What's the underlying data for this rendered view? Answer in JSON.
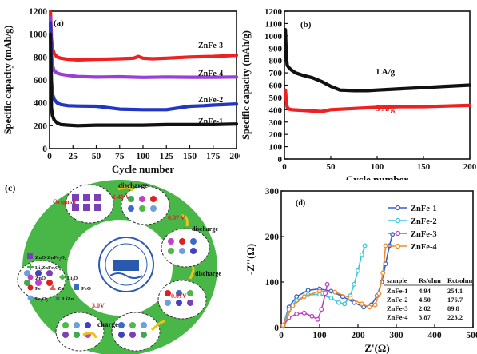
{
  "chart_data": [
    {
      "panel": "(a)",
      "type": "line",
      "xlabel": "Cycle number",
      "ylabel": "Specific capacity (mAh/g)",
      "xlim": [
        0,
        200
      ],
      "ylim": [
        0,
        1200
      ],
      "xticks": [
        0,
        25,
        50,
        75,
        100,
        125,
        150,
        175,
        200
      ],
      "yticks": [
        0,
        200,
        400,
        600,
        800,
        1000,
        1200
      ],
      "series": [
        {
          "name": "ZnFe-3",
          "color": "#ee2020",
          "x": [
            1,
            2,
            3,
            5,
            8,
            12,
            20,
            30,
            50,
            75,
            90,
            95,
            100,
            110,
            125,
            150,
            175,
            200
          ],
          "y": [
            1190,
            960,
            880,
            830,
            800,
            790,
            780,
            775,
            780,
            785,
            790,
            805,
            790,
            785,
            790,
            800,
            805,
            815
          ]
        },
        {
          "name": "ZnFe-4",
          "color": "#9a3fd6",
          "x": [
            1,
            2,
            3,
            5,
            8,
            12,
            20,
            30,
            50,
            75,
            100,
            125,
            150,
            175,
            200
          ],
          "y": [
            1150,
            830,
            730,
            680,
            660,
            650,
            640,
            630,
            625,
            628,
            622,
            626,
            624,
            624,
            626
          ]
        },
        {
          "name": "ZnFe-2",
          "color": "#2136c4",
          "x": [
            1,
            2,
            3,
            5,
            8,
            12,
            20,
            30,
            50,
            75,
            100,
            125,
            150,
            165,
            175,
            200
          ],
          "y": [
            1100,
            600,
            480,
            430,
            400,
            385,
            375,
            372,
            370,
            345,
            340,
            340,
            370,
            375,
            380,
            390
          ]
        },
        {
          "name": "ZnFe-1",
          "color": "#111111",
          "x": [
            1,
            2,
            3,
            5,
            8,
            12,
            20,
            30,
            50,
            75,
            100,
            125,
            150,
            175,
            200
          ],
          "y": [
            1000,
            360,
            290,
            250,
            225,
            210,
            205,
            200,
            205,
            205,
            205,
            210,
            210,
            210,
            215
          ]
        }
      ]
    },
    {
      "panel": "(b)",
      "type": "line",
      "xlabel": "Cycle number",
      "ylabel": "Specific capacity (mAh/g)",
      "xlim": [
        0,
        200
      ],
      "ylim": [
        0,
        1200
      ],
      "xticks": [
        0,
        50,
        100,
        150,
        200
      ],
      "yticks": [
        0,
        100,
        200,
        300,
        400,
        500,
        600,
        700,
        800,
        900,
        1000,
        1100,
        1200
      ],
      "series": [
        {
          "name": "1 A/g",
          "color": "#111111",
          "x": [
            1,
            2,
            3,
            5,
            8,
            12,
            20,
            30,
            40,
            50,
            60,
            75,
            90,
            100,
            125,
            150,
            175,
            200
          ],
          "y": [
            1050,
            840,
            760,
            740,
            720,
            700,
            680,
            660,
            630,
            590,
            560,
            555,
            555,
            560,
            570,
            580,
            590,
            600
          ]
        },
        {
          "name": "5 A/g",
          "color": "#ee2020",
          "x": [
            1,
            2,
            3,
            5,
            8,
            12,
            20,
            30,
            40,
            50,
            75,
            100,
            125,
            150,
            175,
            200
          ],
          "y": [
            560,
            470,
            420,
            405,
            400,
            398,
            395,
            390,
            385,
            400,
            410,
            420,
            425,
            425,
            430,
            435
          ]
        }
      ]
    },
    {
      "panel": "(d)",
      "type": "line",
      "xlabel": "Z'(Ω)",
      "ylabel": "-Z''(Ω)",
      "xlim": [
        0,
        500
      ],
      "ylim": [
        0,
        300
      ],
      "xticks": [
        0,
        100,
        200,
        300,
        400,
        500
      ],
      "yticks": [
        0,
        100,
        200,
        300
      ],
      "series": [
        {
          "name": "ZnFe-1",
          "color": "#3a5fc8",
          "x": [
            5,
            20,
            40,
            70,
            100,
            130,
            160,
            190,
            215,
            235,
            250,
            262,
            272,
            282,
            290
          ],
          "y": [
            5,
            45,
            68,
            82,
            85,
            80,
            68,
            55,
            45,
            50,
            70,
            100,
            140,
            180,
            205
          ]
        },
        {
          "name": "ZnFe-2",
          "color": "#38c8d8",
          "x": [
            5,
            20,
            40,
            70,
            100,
            130,
            150,
            165,
            180,
            190,
            200,
            210,
            218
          ],
          "y": [
            5,
            40,
            60,
            72,
            73,
            65,
            55,
            52,
            70,
            95,
            125,
            160,
            180
          ]
        },
        {
          "name": "ZnFe-3",
          "color": "#c040c8",
          "x": [
            5,
            20,
            40,
            60,
            80,
            95,
            105,
            115,
            120
          ],
          "y": [
            3,
            22,
            30,
            32,
            25,
            18,
            40,
            75,
            95
          ]
        },
        {
          "name": "ZnFe-4",
          "color": "#f08a2a",
          "x": [
            5,
            30,
            60,
            100,
            140,
            180,
            210,
            230,
            245,
            255,
            265,
            272
          ],
          "y": [
            5,
            48,
            68,
            80,
            78,
            65,
            52,
            45,
            50,
            75,
            120,
            180
          ]
        }
      ],
      "table": {
        "headers": [
          "sample",
          "Rs/ohm",
          "Rct/ohm"
        ],
        "rows": [
          [
            "ZnFe-1",
            "4.94",
            "254.1"
          ],
          [
            "ZnFe-2",
            "4.50",
            "176.7"
          ],
          [
            "ZnFe-3",
            "2.02",
            "89.8"
          ],
          [
            "ZnFe-4",
            "3.87",
            "223.2"
          ]
        ]
      }
    }
  ],
  "panel_labels": {
    "a": "(a)",
    "b": "(b)",
    "c": "(c)",
    "d": "(d)"
  },
  "diagram_c": {
    "steps": {
      "discharge": "discharge",
      "v141": "1.41 V",
      "original": "Original",
      "v037": "0.37 V",
      "discharge2": "discharge",
      "v001": "0.01V",
      "discharge3": "discharge",
      "v30": "3.0V",
      "charge": "charge"
    },
    "legend": [
      {
        "label": "ZnO·ZnFe₂O₄",
        "color": "#7b3fb8",
        "shape": "square"
      },
      {
        "label": "Li₂ZnFe₂O₄",
        "color": "#3fa850",
        "shape": "plus"
      },
      {
        "label": "ZnO",
        "color": "#c040c8",
        "shape": "circle"
      },
      {
        "label": "Li₂O",
        "color": "#50b848",
        "shape": "diamond"
      },
      {
        "label": "Fe",
        "color": "#e02020",
        "shape": "circle"
      },
      {
        "label": "Zn",
        "color": "#e06060",
        "shape": "triangle"
      },
      {
        "label": "FeO",
        "color": "#3a6ac8",
        "shape": "square"
      },
      {
        "label": "Fe₂O₃",
        "color": "#6aa0e0",
        "shape": "circle"
      },
      {
        "label": "LiZn",
        "color": "#4040c0",
        "shape": "star"
      }
    ],
    "colors": {
      "ring": "#49b648",
      "inner": "#ffffff",
      "arrow": "#f2c21a"
    }
  }
}
